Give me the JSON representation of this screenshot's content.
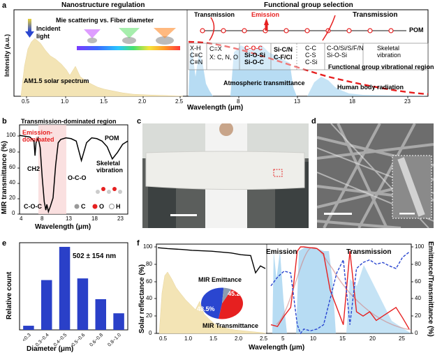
{
  "figure": {
    "panels": {
      "a": {
        "label": "a",
        "left_heading": "Nanostructure regulation",
        "right_heading": "Functional group selection",
        "mie_text": "Mie scattering vs. Fiber diameter",
        "incident_light": "Incident light",
        "am15": "AM1.5 solar spectrum",
        "ylabel": "Intensity (a.u.)",
        "xlabel": "Wavelength (μm)",
        "x_ticks_left": [
          "0.5",
          "1.0",
          "1.5",
          "2.0",
          "2.5"
        ],
        "x_ticks_right": [
          "8",
          "13",
          "18",
          "23"
        ],
        "transmission_left": "Transmission",
        "emission": "Emission",
        "transmission_right": "Transmission",
        "pom": "POM",
        "group_cells": [
          [
            "X-H",
            "C≡C",
            "C≡N"
          ],
          [
            "C=X",
            "X: C, N, O"
          ],
          [
            "C-O-C",
            "Si-O-Si",
            "Si-O-C"
          ],
          [
            "Si-C/N",
            "C-F/Cl"
          ],
          [
            "C-C",
            "C-S",
            "C-Si"
          ],
          [
            "C-O/Si/S/F/N",
            "Si-O-Si"
          ],
          [
            "Skeletal",
            "vibration"
          ]
        ],
        "fg_region": "Functional group vibrational region",
        "atm": "Atmospheric transmittance",
        "human": "Human body radiation"
      },
      "b": {
        "label": "b",
        "title": "Transmission-dominated region",
        "emission_dom": "Emission-dominated",
        "pom": "POM",
        "ch2": "CH2",
        "oco": "O-C-O",
        "coc": "C-O-C",
        "skeletal": "Skeletal vibration",
        "ylabel": "MIR transmittance (%)",
        "xlabel": "Wavelength (μm)",
        "y_ticks": [
          "0",
          "20",
          "40",
          "60",
          "80",
          "100"
        ],
        "x_ticks": [
          "4",
          "8",
          "13",
          "18",
          "23"
        ],
        "legend_c": "C",
        "legend_o": "O",
        "legend_h": "H"
      },
      "c": {
        "label": "c"
      },
      "d": {
        "label": "d"
      },
      "e": {
        "label": "e",
        "annotation": "502 ± 154 nm",
        "ylabel": "Relative count",
        "xlabel": "Diameter (μm)"
      },
      "f": {
        "label": "f",
        "emission": "Emission",
        "transmission": "Transmission",
        "mir_emittance": "MIR Emittance",
        "mir_transmittance": "MIR Transmittance",
        "pct_emit": "45.2%",
        "pct_trans": "48.5%",
        "ylabel_left": "Solar reflectance (%)",
        "ylabel_right": "Emittance/Transmittance (%)",
        "xlabel": "Wavelength (μm)",
        "x_ticks_left": [
          "0.5",
          "1.0",
          "1.5",
          "2.0",
          "2.5"
        ],
        "x_ticks_right": [
          "5",
          "10",
          "15",
          "20",
          "25"
        ],
        "y_ticks": [
          "0",
          "20",
          "40",
          "60",
          "80",
          "100"
        ]
      }
    }
  },
  "chart_data": [
    {
      "type": "bar",
      "panel": "e",
      "categories": [
        "<0.3",
        "0.3~0.4",
        "0.4~0.5",
        "0.5~0.6",
        "0.6~0.8",
        "0.8~1.0"
      ],
      "values": [
        0.05,
        0.6,
        1.0,
        0.62,
        0.37,
        0.2
      ],
      "ylabel": "Relative count",
      "xlabel": "Diameter (μm)",
      "ylim": [
        0,
        1.05
      ],
      "color": "#2a40c8"
    },
    {
      "type": "pie",
      "panel": "f",
      "slices": [
        {
          "label": "MIR Emittance",
          "value": 45.2,
          "color": "#e62020"
        },
        {
          "label": "MIR Transmittance",
          "value": 48.5,
          "color": "#2a46d0"
        },
        {
          "label": "",
          "value": 6.3,
          "color": "#8c9cb0"
        }
      ]
    },
    {
      "type": "line",
      "panel": "b",
      "series": [
        {
          "name": "POM",
          "x": [
            4,
            5,
            6,
            6.8,
            7,
            7.2,
            7.6,
            8,
            8.4,
            8.8,
            9.1,
            9.3,
            9.6,
            10,
            10.5,
            11,
            11.5,
            12,
            13,
            14,
            15,
            16,
            17,
            18,
            19,
            20,
            21,
            22,
            23,
            24,
            25
          ],
          "y": [
            97,
            96,
            95,
            90,
            72,
            88,
            94,
            82,
            45,
            15,
            5,
            12,
            3,
            10,
            20,
            60,
            88,
            92,
            94,
            93,
            90,
            66,
            88,
            94,
            93,
            90,
            83,
            68,
            76,
            86,
            90
          ]
        }
      ],
      "xlim": [
        4,
        25
      ],
      "ylim": [
        0,
        110
      ],
      "color": "#000000"
    },
    {
      "type": "line",
      "panel": "f",
      "series": [
        {
          "name": "",
          "x": [
            0.3,
            0.5,
            0.8,
            1.0,
            1.4,
            1.8,
            2.0,
            2.2,
            2.3,
            2.4,
            2.5
          ],
          "y": [
            99,
            98,
            97,
            96,
            95,
            93,
            91,
            90,
            70,
            78,
            75
          ],
          "color": "#000000",
          "dash": false
        },
        {
          "name": "",
          "x": [
            4,
            5,
            6,
            7,
            7.5,
            8,
            8.5,
            9,
            10,
            11,
            12,
            13,
            14,
            15,
            16,
            17,
            18,
            19,
            20,
            21,
            22,
            23,
            24,
            25
          ],
          "y": [
            10,
            8,
            20,
            30,
            60,
            95,
            100,
            100,
            99,
            98,
            92,
            50,
            30,
            10,
            95,
            25,
            20,
            25,
            15,
            20,
            25,
            30,
            18,
            5
          ],
          "color": "#e62020",
          "dash": false
        },
        {
          "name": "",
          "x": [
            4,
            5,
            6,
            7,
            7.5,
            8,
            8.5,
            9,
            10,
            11,
            12,
            13,
            14,
            15,
            16,
            17,
            18,
            19,
            20,
            21,
            22,
            23,
            24,
            25
          ],
          "y": [
            55,
            65,
            72,
            70,
            40,
            10,
            0,
            5,
            3,
            5,
            10,
            40,
            70,
            85,
            10,
            75,
            82,
            85,
            80,
            82,
            78,
            75,
            88,
            94
          ],
          "color": "#2a46d0",
          "dash": true
        }
      ],
      "ylim": [
        0,
        100
      ]
    }
  ]
}
